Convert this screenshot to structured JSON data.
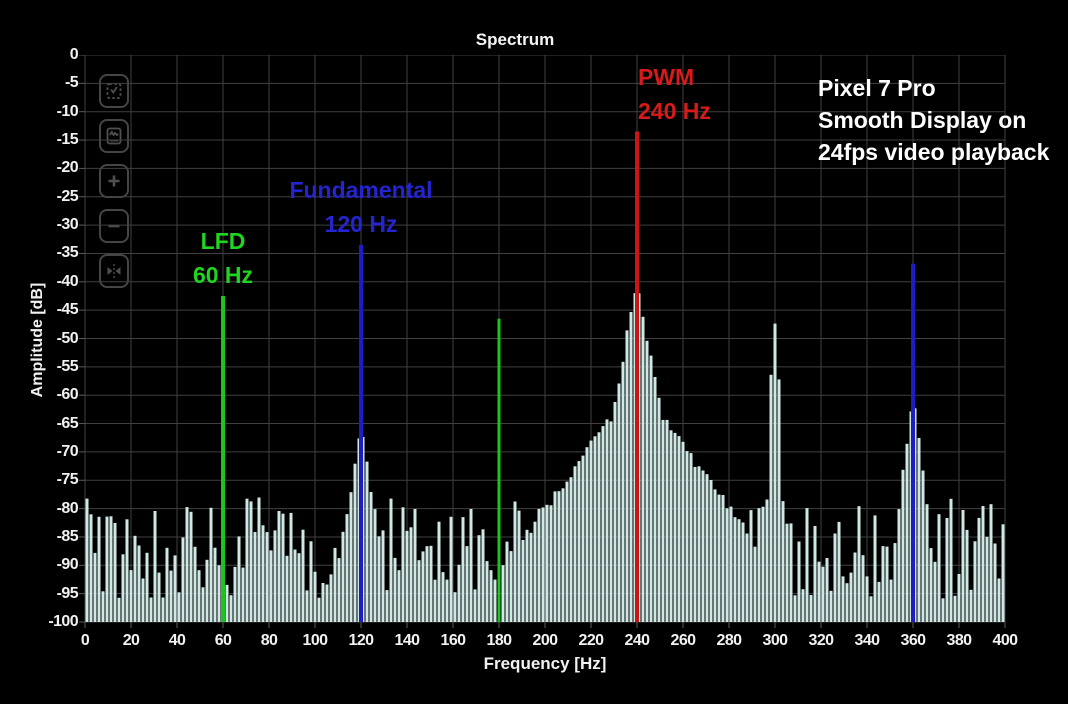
{
  "annotation": {
    "lines": [
      "Pixel 7 Pro",
      "Smooth Display on",
      "24fps video playback"
    ],
    "color": "#ffffff"
  },
  "toolbar": {
    "buttons": [
      {
        "icon": "zoom-select-icon"
      },
      {
        "icon": "autoscale-icon"
      },
      {
        "icon": "zoom-in-icon"
      },
      {
        "icon": "zoom-out-icon"
      },
      {
        "icon": "fit-view-icon"
      }
    ],
    "icon_color": "#4f4f4f"
  },
  "chart_data": {
    "type": "bar",
    "title": "Spectrum",
    "xlabel": "Frequency [Hz]",
    "ylabel": "Amplitude [dB]",
    "xlim": [
      0,
      400
    ],
    "ylim": [
      -100,
      0
    ],
    "x_ticks": [
      0,
      20,
      40,
      60,
      80,
      100,
      120,
      140,
      160,
      180,
      200,
      220,
      240,
      260,
      280,
      300,
      320,
      340,
      360,
      380,
      400
    ],
    "y_ticks": [
      0,
      -5,
      -10,
      -15,
      -20,
      -25,
      -30,
      -35,
      -40,
      -45,
      -50,
      -55,
      -60,
      -65,
      -70,
      -75,
      -80,
      -85,
      -90,
      -95,
      -100
    ],
    "grid": true,
    "grid_color": "#414141",
    "tick_color": "#5a5a5a",
    "bar_color": "#cfe8e5",
    "noise_floor_db": {
      "min": -96,
      "max": -78
    },
    "spectral_features": [
      {
        "freq": 0,
        "peak_db": -78,
        "inner_slope": 3,
        "inner_width_hz": 2,
        "outer_slope": 3
      },
      {
        "freq": 120,
        "peak_db": -68,
        "inner_slope": 2.5,
        "inner_width_hz": 4,
        "outer_slope": 2.5
      },
      {
        "freq": 240,
        "peak_db": -42,
        "inner_slope": 2.2,
        "inner_width_hz": 10,
        "outer_slope": 0.55
      },
      {
        "freq": 300,
        "peak_db": -48,
        "inner_slope": 12,
        "inner_width_hz": 3,
        "outer_slope": 12
      },
      {
        "freq": 360,
        "peak_db": -62,
        "inner_slope": 3.5,
        "inner_width_hz": 5,
        "outer_slope": 3.5
      }
    ],
    "peaks": [
      {
        "freq": 60,
        "marker_color": "#1dc41d",
        "marker_top_db": -42.5,
        "marker_width": 4,
        "label_lines": [
          "LFD",
          "60 Hz"
        ],
        "label_color": "#21d421",
        "align": "center"
      },
      {
        "freq": 120,
        "marker_color": "#1d1dc8",
        "marker_top_db": -33.5,
        "marker_width": 4,
        "label_lines": [
          "Fundamental",
          "120 Hz"
        ],
        "label_color": "#2424d0",
        "align": "center"
      },
      {
        "freq": 180,
        "marker_color": "#1dc41d",
        "marker_top_db": -46.5,
        "marker_width": 3,
        "label_lines": [],
        "label_color": "#21d421",
        "align": "center"
      },
      {
        "freq": 240,
        "marker_color": "#cc1414",
        "marker_top_db": -13.5,
        "marker_width": 4,
        "label_lines": [
          "PWM",
          "240 Hz"
        ],
        "label_color": "#d61b1b",
        "align": "left"
      },
      {
        "freq": 360,
        "marker_color": "#1d1dc8",
        "marker_top_db": -36.8,
        "marker_width": 4,
        "label_lines": [],
        "label_color": "#2424d0",
        "align": "center"
      }
    ],
    "legend": null
  }
}
